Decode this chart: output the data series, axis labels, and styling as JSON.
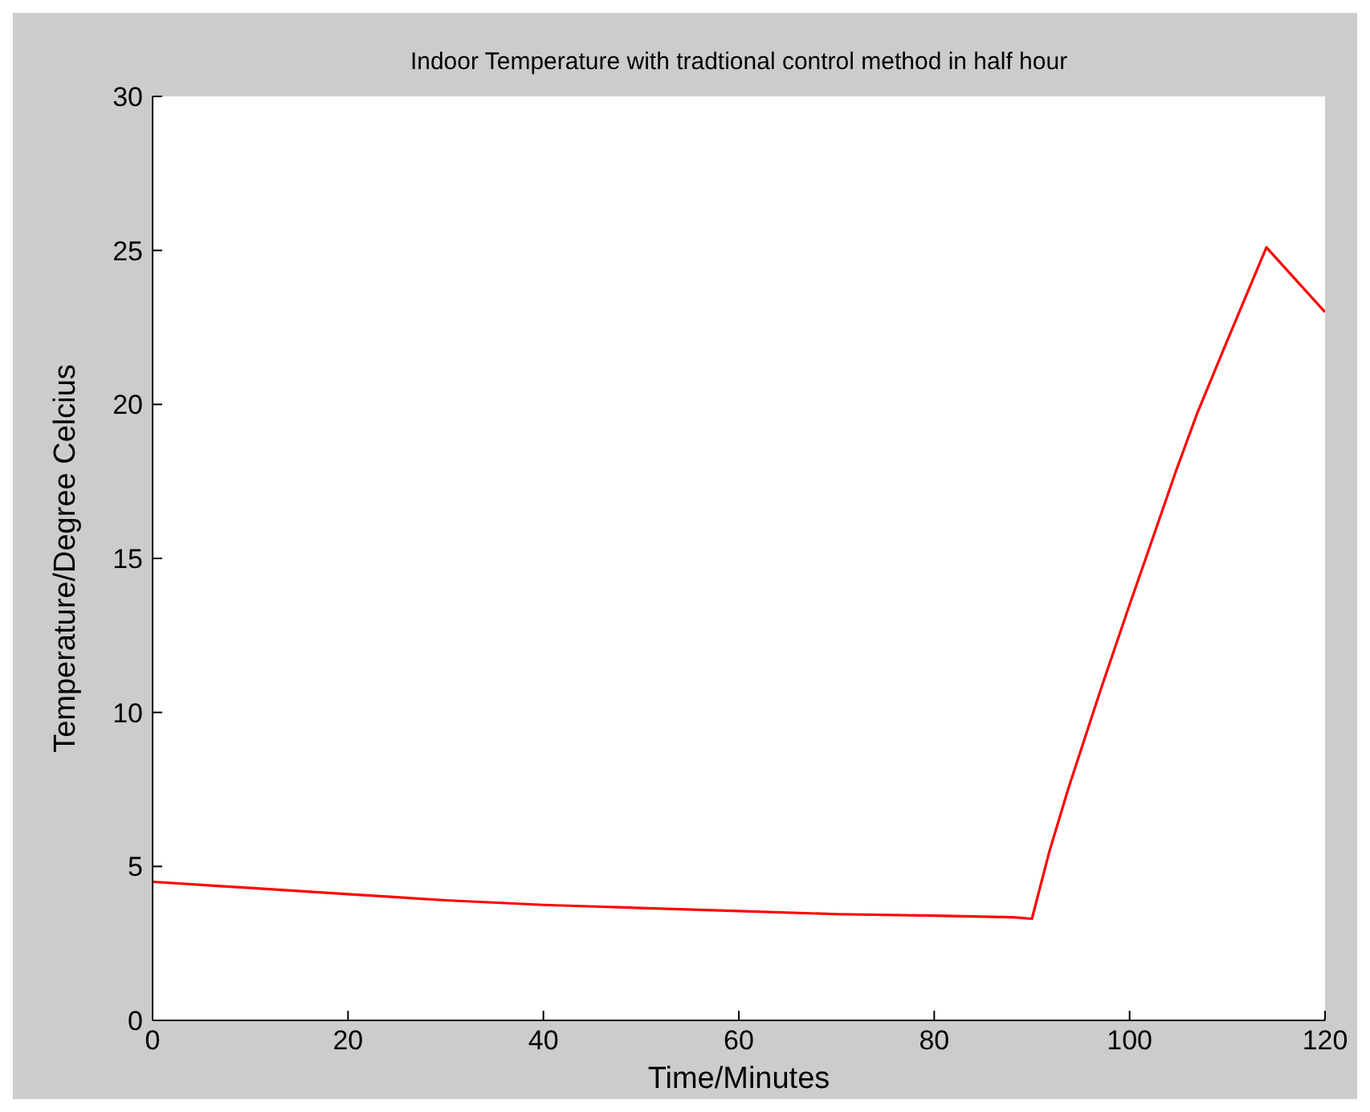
{
  "chart_data": {
    "type": "line",
    "title": "Indoor Temperature with tradtional control method in half hour",
    "xlabel": "Time/Minutes",
    "ylabel": "Temperature/Degree Celcius",
    "x": [
      0,
      10,
      20,
      30,
      40,
      50,
      60,
      70,
      80,
      88,
      90,
      91.8,
      93.7,
      97,
      100,
      102.2,
      104.7,
      106.9,
      109.9,
      114,
      120
    ],
    "series": [
      {
        "color": "#ff0000",
        "values": [
          4.5,
          4.3,
          4.1,
          3.9,
          3.75,
          3.65,
          3.55,
          3.45,
          3.4,
          3.35,
          3.3,
          5.5,
          7.5,
          10.7,
          13.5,
          15.5,
          17.8,
          19.7,
          22,
          25.1,
          23
        ]
      }
    ],
    "xlim": [
      0,
      120
    ],
    "xticks": [
      0,
      20,
      40,
      60,
      80,
      100,
      120
    ],
    "ylim": [
      0,
      30
    ],
    "yticks": [
      0,
      5,
      10,
      15,
      20,
      25,
      30
    ],
    "grid": false,
    "legend": false,
    "marker": "none",
    "line_style": "solid"
  }
}
